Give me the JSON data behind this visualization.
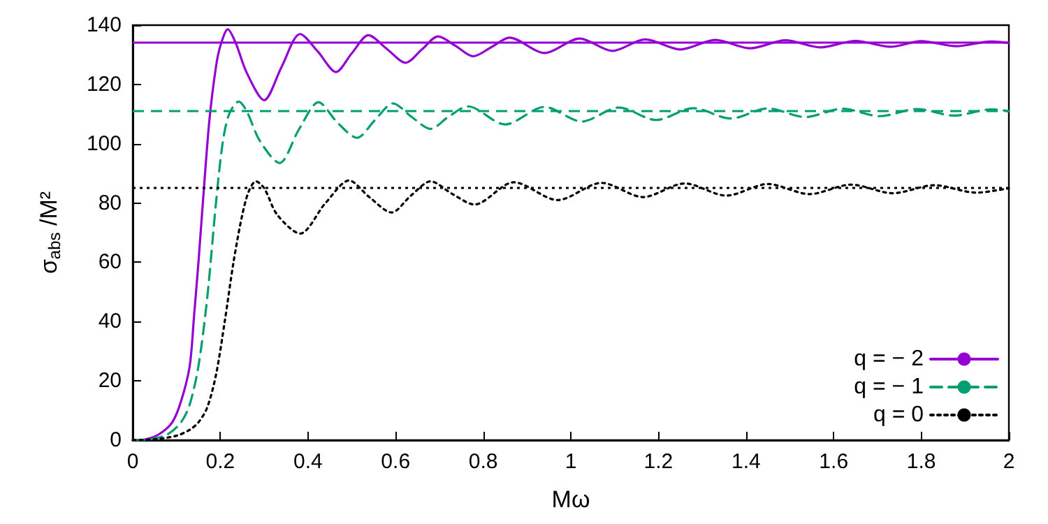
{
  "chart_data": {
    "type": "line",
    "xlabel": "Mω",
    "ylabel": "σ$_{abs}$ /M²",
    "xlim": [
      0,
      2
    ],
    "xticks": [
      0,
      0.2,
      0.4,
      0.6,
      0.8,
      1,
      1.2,
      1.4,
      1.6,
      1.8,
      2
    ],
    "ylim": [
      0,
      140
    ],
    "yticks": [
      0,
      20,
      40,
      60,
      80,
      100,
      120,
      140
    ],
    "grid": false,
    "legend": "bottom right",
    "marker": "none",
    "ref_lines": [
      {
        "axis": "y",
        "value": 134,
        "color": "#9400d3",
        "line_style": "solid"
      },
      {
        "axis": "y",
        "value": 111,
        "color": "#009e73",
        "line_style": "dashed"
      },
      {
        "axis": "y",
        "value": 85,
        "color": "#000000",
        "line_style": "dotted"
      }
    ],
    "series": [
      {
        "name": "q = − 2",
        "color": "#9400d3",
        "line_style": "solid",
        "x": [
          0,
          0.03,
          0.06,
          0.09,
          0.11,
          0.13,
          0.14,
          0.15,
          0.16,
          0.175,
          0.19,
          0.2,
          0.217,
          0.235,
          0.26,
          0.3,
          0.34,
          0.382,
          0.423,
          0.464,
          0.5,
          0.538,
          0.58,
          0.623,
          0.66,
          0.697,
          0.737,
          0.777,
          0.82,
          0.86,
          0.94,
          1.02,
          1.095,
          1.17,
          1.25,
          1.33,
          1.41,
          1.49,
          1.57,
          1.65,
          1.73,
          1.8,
          1.88,
          1.96,
          2
        ],
        "values": [
          0,
          0.3,
          2,
          6,
          13,
          25,
          42,
          60,
          80,
          108,
          126,
          133,
          138.6,
          134,
          124,
          114.7,
          126,
          137,
          131,
          124.2,
          130.5,
          136.6,
          132,
          127.3,
          131.8,
          136.2,
          133,
          129.5,
          132.7,
          135.8,
          130.6,
          135.5,
          131.3,
          135.2,
          131.8,
          135,
          132.2,
          134.9,
          132.5,
          134.7,
          132.7,
          134.6,
          132.9,
          134.5,
          134
        ]
      },
      {
        "name": "q = − 1",
        "color": "#009e73",
        "line_style": "dashed",
        "x": [
          0,
          0.04,
          0.08,
          0.11,
          0.13,
          0.15,
          0.17,
          0.19,
          0.205,
          0.22,
          0.242,
          0.26,
          0.29,
          0.335,
          0.38,
          0.424,
          0.468,
          0.512,
          0.553,
          0.594,
          0.637,
          0.68,
          0.72,
          0.765,
          0.85,
          0.94,
          1.025,
          1.11,
          1.195,
          1.28,
          1.365,
          1.45,
          1.535,
          1.62,
          1.705,
          1.79,
          1.875,
          1.96,
          2
        ],
        "values": [
          0,
          0.3,
          2,
          6,
          12,
          25,
          48,
          80,
          100,
          110,
          114.2,
          111,
          101,
          93.5,
          105,
          114,
          107,
          102,
          108,
          113.6,
          109,
          105,
          109,
          112.6,
          106.5,
          112.4,
          107.5,
          112.2,
          108,
          112,
          108.5,
          111.9,
          109,
          111.8,
          109.3,
          111.7,
          109.5,
          111.6,
          111
        ]
      },
      {
        "name": "q = 0",
        "color": "#000000",
        "line_style": "dotted",
        "x": [
          0,
          0.05,
          0.1,
          0.13,
          0.15,
          0.17,
          0.19,
          0.21,
          0.23,
          0.25,
          0.265,
          0.281,
          0.3,
          0.33,
          0.382,
          0.44,
          0.494,
          0.54,
          0.591,
          0.635,
          0.68,
          0.73,
          0.78,
          0.87,
          0.97,
          1.07,
          1.165,
          1.26,
          1.355,
          1.45,
          1.545,
          1.64,
          1.735,
          1.83,
          1.925,
          2
        ],
        "values": [
          0,
          0.3,
          1.5,
          3.5,
          6,
          11,
          22,
          40,
          60,
          76,
          84,
          87.3,
          85,
          76,
          69.7,
          80,
          87.6,
          82,
          76.8,
          82.5,
          87.3,
          83,
          79.5,
          87,
          81,
          86.8,
          82,
          86.6,
          82.5,
          86.4,
          83,
          86.2,
          83.3,
          86,
          83.5,
          85
        ]
      }
    ]
  }
}
